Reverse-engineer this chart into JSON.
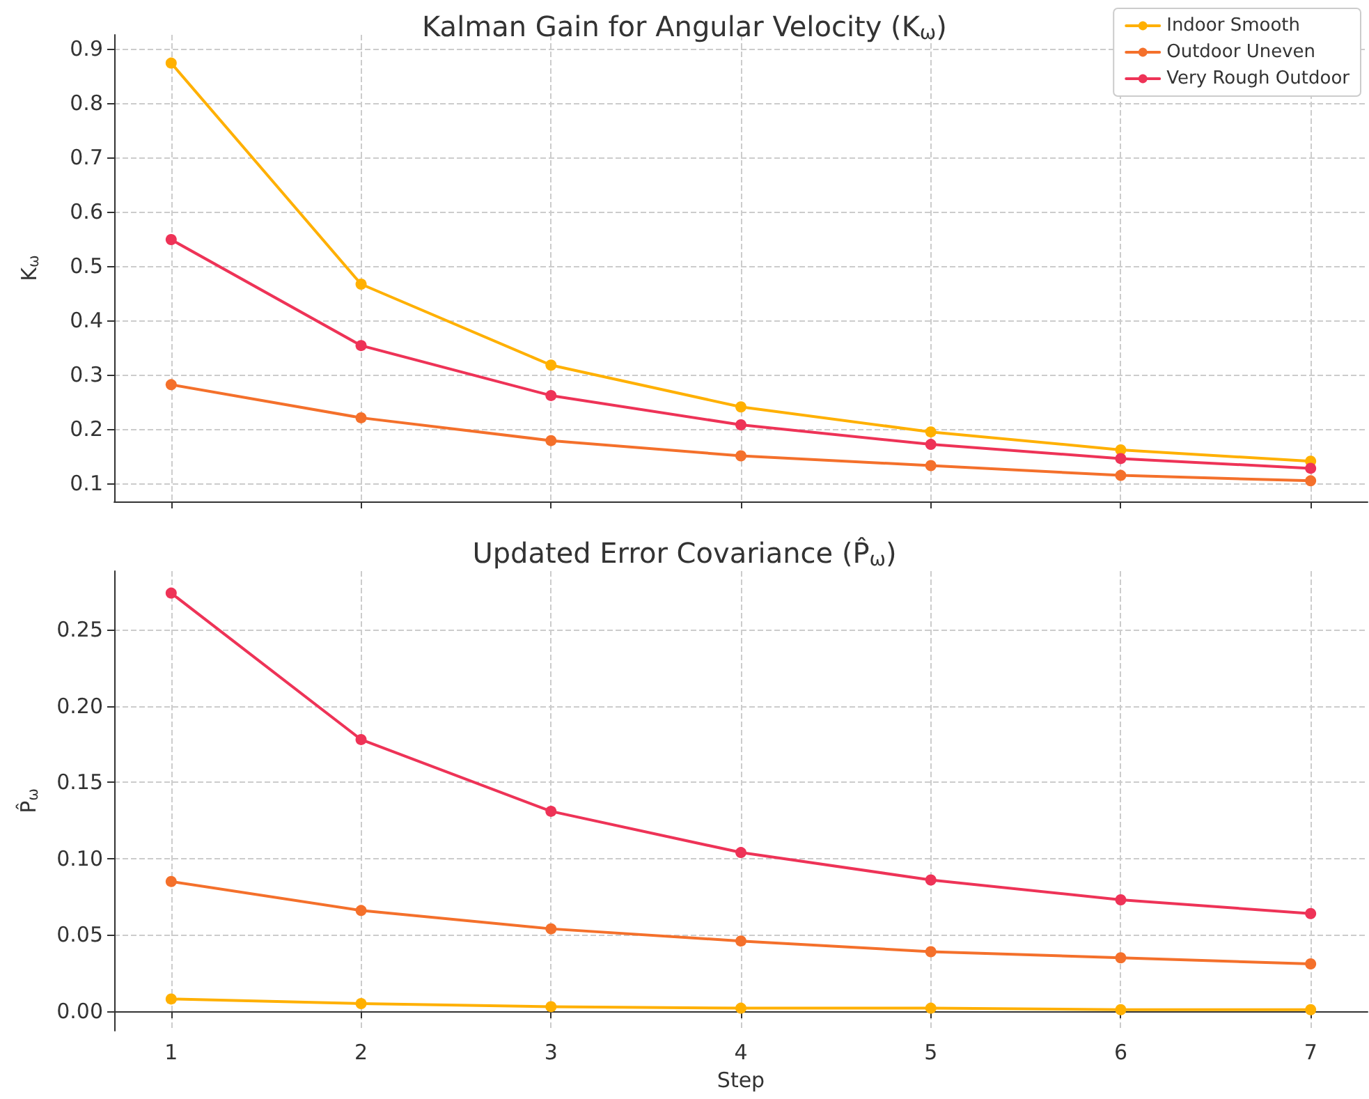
{
  "chart_data": [
    {
      "type": "line",
      "title": "Kalman Gain for Angular Velocity (K$_{ω}$)",
      "ylabel": "K$_{ω}$",
      "x": [
        1,
        2,
        3,
        4,
        5,
        6,
        7
      ],
      "xlim": [
        0.7,
        7.3
      ],
      "xticks": [
        1,
        2,
        3,
        4,
        5,
        6,
        7
      ],
      "ylim": [
        0.067,
        0.926
      ],
      "yticks": [
        0.1,
        0.2,
        0.3,
        0.4,
        0.5,
        0.6,
        0.7,
        0.8,
        0.9
      ],
      "tick_labels": "y",
      "grid": true,
      "legend": "top right",
      "marker": "circle",
      "line_style": "solid",
      "series": [
        {
          "name": "Indoor Smooth",
          "color": "#ffb000",
          "values": [
            0.874,
            0.467,
            0.318,
            0.241,
            0.195,
            0.162,
            0.141
          ]
        },
        {
          "name": "Outdoor Uneven",
          "color": "#f4702b",
          "values": [
            0.282,
            0.221,
            0.179,
            0.151,
            0.133,
            0.115,
            0.105
          ]
        },
        {
          "name": "Very Rough Outdoor",
          "color": "#ee3357",
          "values": [
            0.549,
            0.354,
            0.262,
            0.208,
            0.172,
            0.146,
            0.128
          ]
        }
      ]
    },
    {
      "type": "line",
      "title": "Updated Error Covariance (P̂$_{ω}$)",
      "ylabel": "P̂$_{ω}$",
      "xlabel": "Step",
      "x": [
        1,
        2,
        3,
        4,
        5,
        6,
        7
      ],
      "xlim": [
        0.7,
        7.3
      ],
      "xticks": [
        1,
        2,
        3,
        4,
        5,
        6,
        7
      ],
      "ylim": [
        -0.0128,
        0.2884
      ],
      "yticks": [
        {
          "value": 0,
          "label": "0.00"
        },
        {
          "value": 0.05,
          "label": "0.05"
        },
        {
          "value": 0.1,
          "label": "0.10"
        },
        {
          "value": 0.15,
          "label": "0.15"
        },
        {
          "value": 0.2,
          "label": "0.20"
        },
        {
          "value": 0.25,
          "label": "0.25"
        }
      ],
      "grid": true,
      "marker": "circle",
      "line_style": "solid",
      "series": [
        {
          "color": "#ffb000",
          "values": [
            0.008,
            0.005,
            0.003,
            0.002,
            0.002,
            0.001,
            0.001
          ]
        },
        {
          "color": "#f4702b",
          "values": [
            0.085,
            0.066,
            0.054,
            0.046,
            0.039,
            0.035,
            0.031
          ]
        },
        {
          "color": "#ee3357",
          "values": [
            0.274,
            0.178,
            0.131,
            0.104,
            0.086,
            0.073,
            0.064
          ]
        }
      ]
    }
  ]
}
